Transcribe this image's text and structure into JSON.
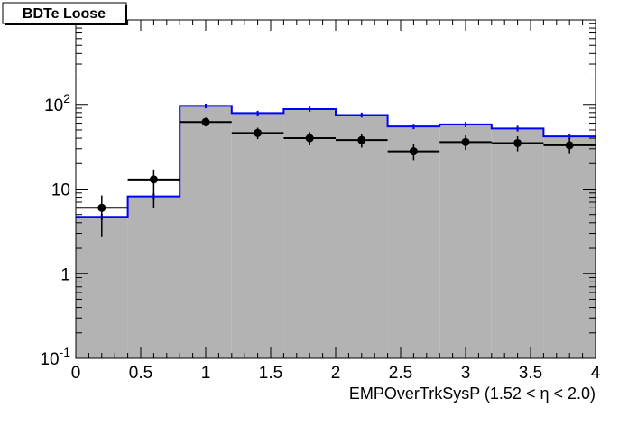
{
  "chart_data": {
    "type": "histogram",
    "title": "BDTe Loose",
    "xlabel": "EMPOverTrkSysP (1.52 <   η < 2.0)",
    "ylabel": "",
    "xlim": [
      0,
      4
    ],
    "ylim": [
      0.1,
      1000
    ],
    "yscale": "log",
    "grid": false,
    "bin_edges": [
      0,
      0.4,
      0.8,
      1.2,
      1.6,
      2.0,
      2.4,
      2.8,
      3.2,
      3.6,
      4.0
    ],
    "x_tick_labels": [
      "0",
      "0.5",
      "1",
      "1.5",
      "2",
      "2.5",
      "3",
      "3.5",
      "4"
    ],
    "y_tick_labels": [
      {
        "value": 0.1,
        "base": "10",
        "exp": "-1"
      },
      {
        "value": 1,
        "base": "1",
        "exp": ""
      },
      {
        "value": 10,
        "base": "10",
        "exp": ""
      },
      {
        "value": 100,
        "base": "10",
        "exp": "2"
      }
    ],
    "series": [
      {
        "style": "filled-histogram",
        "fill_color": "#b3b3b3",
        "line_color": "#0000ff",
        "values": [
          4.7,
          8.2,
          96,
          79,
          88,
          75,
          55,
          58,
          52,
          42
        ],
        "errors": [
          0.4,
          0.7,
          6,
          5,
          6,
          5,
          4,
          4,
          4,
          3
        ]
      },
      {
        "style": "points",
        "color": "#000000",
        "x": [
          0.2,
          0.6,
          1.0,
          1.4,
          1.8,
          2.2,
          2.6,
          3.0,
          3.4,
          3.8
        ],
        "values": [
          6.0,
          13,
          62,
          46,
          40,
          38,
          28,
          36,
          35,
          33
        ],
        "err_low": [
          3.3,
          7,
          7,
          7,
          7,
          7,
          6,
          7,
          7,
          7
        ],
        "err_high": [
          2.4,
          4,
          8,
          7,
          7,
          7,
          6,
          7,
          7,
          7
        ]
      }
    ]
  }
}
